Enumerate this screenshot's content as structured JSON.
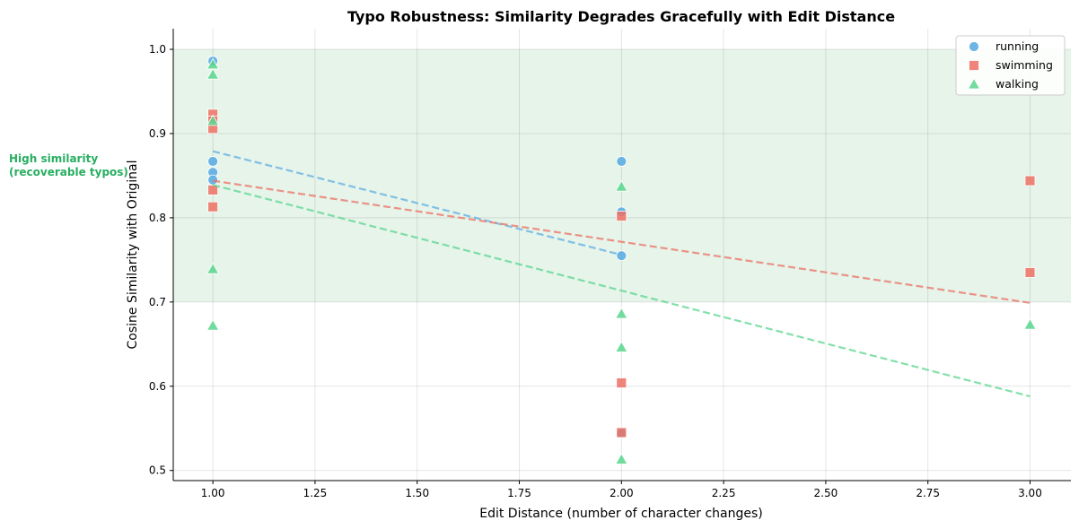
{
  "chart_data": {
    "type": "scatter",
    "title": "Typo Robustness: Similarity Degrades Gracefully with Edit Distance",
    "xlabel": "Edit Distance (number of character changes)",
    "ylabel": "Cosine Similarity with Original",
    "xlim": [
      0.903,
      3.1
    ],
    "ylim": [
      0.488,
      1.0245
    ],
    "xticks": [
      1.0,
      1.25,
      1.5,
      1.75,
      2.0,
      2.25,
      2.5,
      2.75,
      3.0
    ],
    "xtick_labels": [
      "1.00",
      "1.25",
      "1.50",
      "1.75",
      "2.00",
      "2.25",
      "2.50",
      "2.75",
      "3.00"
    ],
    "yticks": [
      0.5,
      0.6,
      0.7,
      0.8,
      0.9,
      1.0
    ],
    "ytick_labels": [
      "0.5",
      "0.6",
      "0.7",
      "0.8",
      "0.9",
      "1.0"
    ],
    "grid": true,
    "legend_position": "top-right",
    "shaded_band": {
      "y_from": 0.7,
      "y_to": 1.0,
      "color": "#e6f4ea",
      "label": "High similarity\n(recoverable typos)",
      "label_color": "#27ae60"
    },
    "series": [
      {
        "name": "running",
        "marker": "circle",
        "color": "#5dade2",
        "x": [
          1,
          1,
          1,
          1,
          2,
          2,
          2,
          2
        ],
        "y": [
          0.986,
          0.867,
          0.854,
          0.845,
          0.867,
          0.807,
          0.755,
          0.544
        ],
        "trend": {
          "x": [
            1,
            2
          ],
          "y": [
            0.879,
            0.756
          ]
        }
      },
      {
        "name": "swimming",
        "marker": "square",
        "color": "#ec7063",
        "x": [
          1,
          1,
          1,
          1,
          1,
          2,
          2,
          2,
          3,
          3
        ],
        "y": [
          0.923,
          0.915,
          0.906,
          0.833,
          0.813,
          0.802,
          0.604,
          0.545,
          0.844,
          0.735
        ],
        "trend": {
          "x": [
            1,
            3
          ],
          "y": [
            0.844,
            0.699
          ]
        }
      },
      {
        "name": "walking",
        "marker": "triangle",
        "color": "#58d68d",
        "x": [
          1,
          1,
          1,
          1,
          1,
          2,
          2,
          2,
          2,
          3
        ],
        "y": [
          0.982,
          0.97,
          0.915,
          0.739,
          0.672,
          0.837,
          0.686,
          0.646,
          0.513,
          0.673
        ],
        "trend": {
          "x": [
            1,
            3
          ],
          "y": [
            0.839,
            0.588
          ]
        }
      }
    ]
  }
}
